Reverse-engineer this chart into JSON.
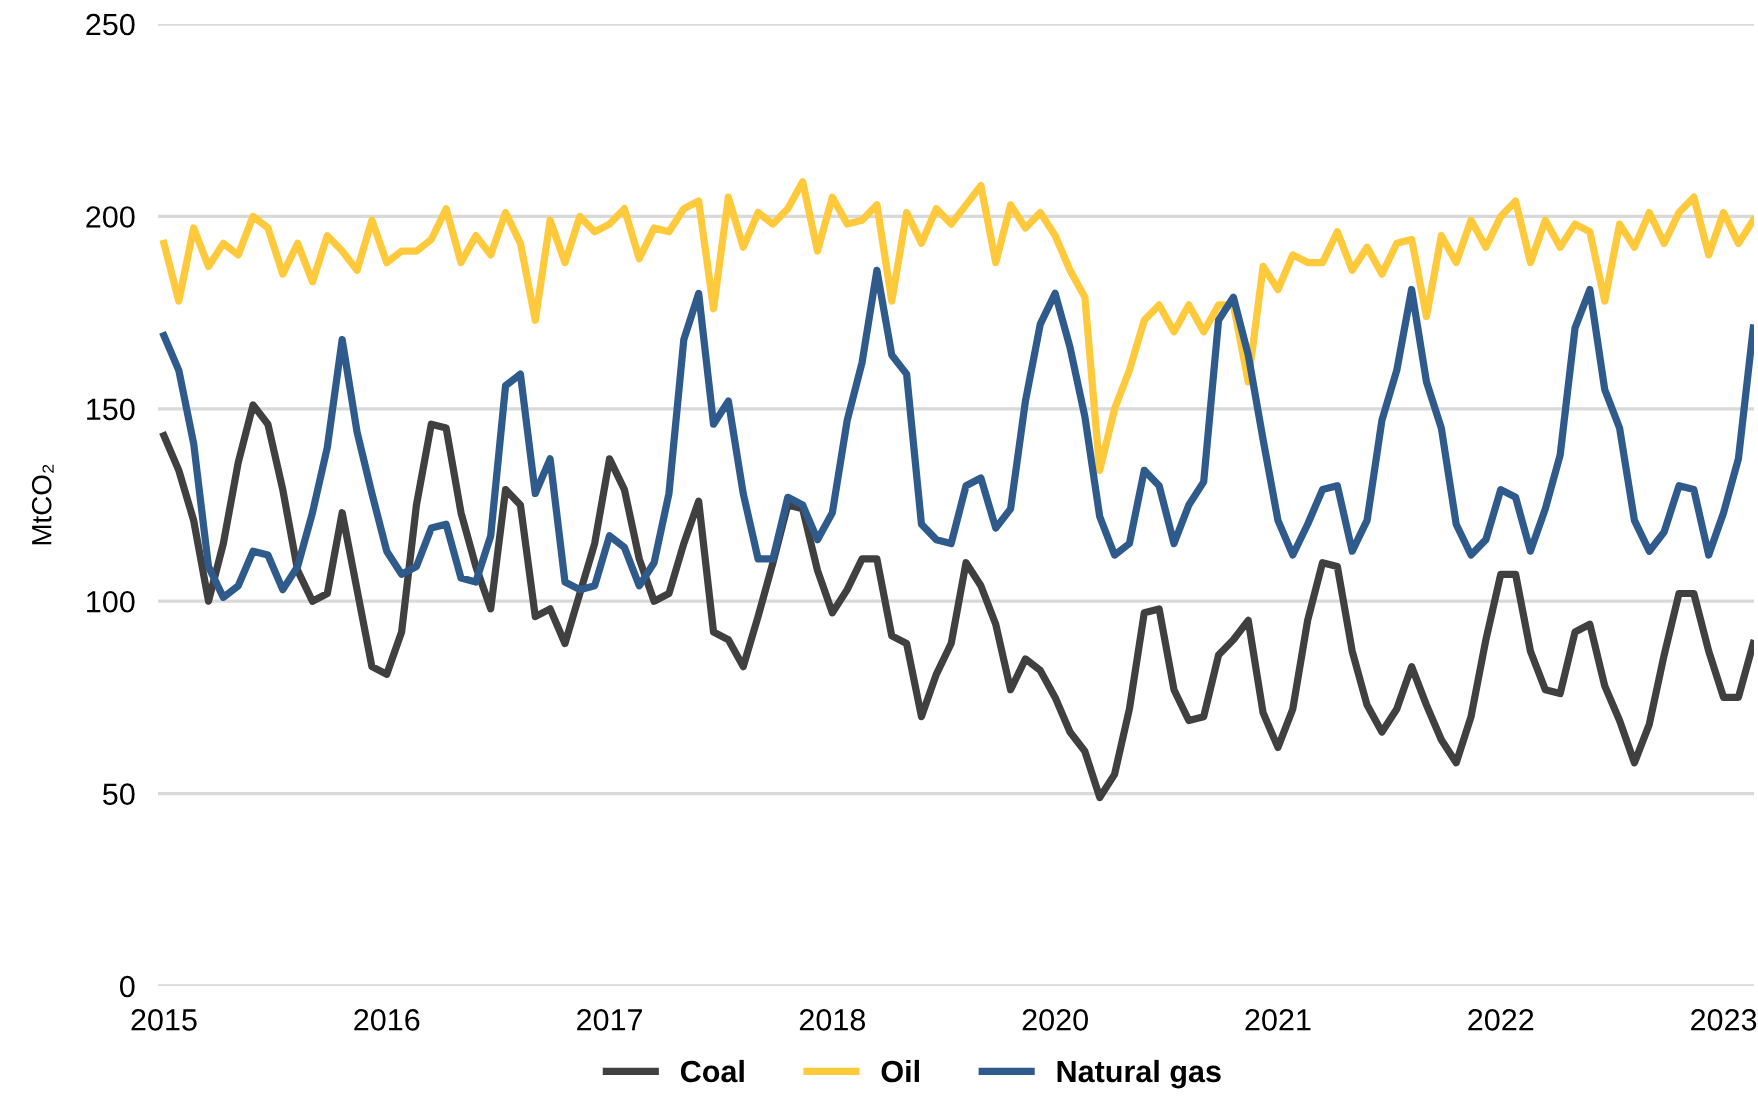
{
  "chart_data": {
    "type": "line",
    "ylabel": "MtCO₂",
    "categories": [
      "2015",
      null,
      null,
      null,
      null,
      null,
      null,
      null,
      null,
      null,
      null,
      null,
      null,
      null,
      null,
      "2016",
      null,
      null,
      null,
      null,
      null,
      null,
      null,
      null,
      null,
      null,
      null,
      null,
      null,
      null,
      "2017",
      null,
      null,
      null,
      null,
      null,
      null,
      null,
      null,
      null,
      null,
      null,
      null,
      null,
      null,
      "2018",
      null,
      null,
      null,
      null,
      null,
      null,
      null,
      null,
      null,
      null,
      null,
      null,
      null,
      null,
      "2020",
      null,
      null,
      null,
      null,
      null,
      null,
      null,
      null,
      null,
      null,
      null,
      null,
      null,
      null,
      "2021",
      null,
      null,
      null,
      null,
      null,
      null,
      null,
      null,
      null,
      null,
      null,
      null,
      null,
      null,
      "2022",
      null,
      null,
      null,
      null,
      null,
      null,
      null,
      null,
      null,
      null,
      null,
      null,
      null,
      null,
      "2023",
      null,
      null
    ],
    "series": [
      {
        "name": "Coal",
        "color": "#404040",
        "values": [
          143,
          134,
          121,
          100,
          115,
          136,
          151,
          146,
          129,
          108,
          100,
          102,
          123,
          103,
          83,
          81,
          92,
          125,
          146,
          145,
          123,
          109,
          98,
          129,
          125,
          96,
          98,
          89,
          102,
          115,
          137,
          129,
          111,
          100,
          102,
          115,
          126,
          92,
          90,
          83,
          96,
          110,
          125,
          124,
          108,
          97,
          103,
          111,
          111,
          91,
          89,
          70,
          81,
          89,
          110,
          104,
          94,
          77,
          85,
          82,
          75,
          66,
          61,
          49,
          55,
          72,
          97,
          98,
          77,
          69,
          70,
          86,
          90,
          95,
          71,
          62,
          72,
          95,
          110,
          109,
          87,
          73,
          66,
          72,
          83,
          73,
          64,
          58,
          70,
          90,
          107,
          107,
          87,
          77,
          76,
          92,
          94,
          78,
          69,
          58,
          68,
          86,
          102,
          102,
          87,
          75,
          75,
          89
        ]
      },
      {
        "name": "Oil",
        "color": "#ffc93c",
        "values": [
          193,
          178,
          197,
          187,
          193,
          190,
          200,
          197,
          185,
          193,
          183,
          195,
          191,
          186,
          199,
          188,
          191,
          191,
          194,
          202,
          188,
          195,
          190,
          201,
          193,
          173,
          199,
          188,
          200,
          196,
          198,
          202,
          189,
          197,
          196,
          202,
          204,
          176,
          205,
          192,
          201,
          198,
          202,
          209,
          191,
          205,
          198,
          199,
          203,
          178,
          201,
          193,
          202,
          198,
          203,
          208,
          188,
          203,
          197,
          201,
          195,
          186,
          179,
          134,
          150,
          160,
          173,
          177,
          170,
          177,
          170,
          177,
          177,
          157,
          187,
          181,
          190,
          188,
          188,
          196,
          186,
          192,
          185,
          193,
          194,
          174,
          195,
          188,
          199,
          192,
          200,
          204,
          188,
          199,
          192,
          198,
          196,
          178,
          198,
          192,
          201,
          193,
          201,
          205,
          190,
          201,
          193,
          199
        ]
      },
      {
        "name": "Natural gas",
        "color": "#2f5a8c",
        "values": [
          169,
          160,
          141,
          109,
          101,
          104,
          113,
          112,
          103,
          109,
          123,
          140,
          168,
          144,
          128,
          113,
          107,
          109,
          119,
          120,
          106,
          105,
          117,
          156,
          159,
          128,
          137,
          105,
          103,
          104,
          117,
          114,
          104,
          110,
          128,
          168,
          180,
          146,
          152,
          128,
          111,
          111,
          127,
          125,
          116,
          123,
          147,
          162,
          186,
          164,
          159,
          120,
          116,
          115,
          130,
          132,
          119,
          124,
          152,
          172,
          180,
          166,
          148,
          122,
          112,
          115,
          134,
          130,
          115,
          125,
          131,
          173,
          179,
          164,
          142,
          121,
          112,
          120,
          129,
          130,
          113,
          121,
          147,
          160,
          181,
          157,
          145,
          120,
          112,
          116,
          129,
          127,
          113,
          124,
          138,
          171,
          181,
          155,
          145,
          121,
          113,
          118,
          130,
          129,
          112,
          123,
          137,
          171
        ]
      }
    ],
    "ylim": [
      0,
      250
    ],
    "yticks": [
      0,
      50,
      100,
      150,
      200,
      250
    ],
    "grid": "y",
    "legend": "bottom",
    "line_style": "solid",
    "marker": "none"
  }
}
